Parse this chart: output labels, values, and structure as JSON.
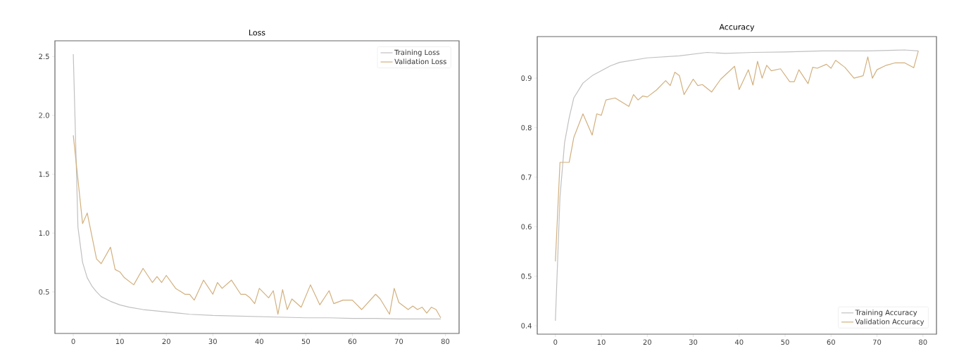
{
  "chart_data": [
    {
      "type": "line",
      "title": "Loss",
      "xlim": [
        -3.95,
        82.95
      ],
      "ylim": [
        0.147,
        2.633
      ],
      "xticks": [
        0,
        10,
        20,
        30,
        40,
        50,
        60,
        70,
        80
      ],
      "yticks": [
        0.5,
        {
          "value": 1,
          "label": "1.0"
        },
        1.5,
        {
          "value": 2,
          "label": "2.0"
        },
        2.5
      ],
      "legend": "top right",
      "series": [
        {
          "name": "Training Loss",
          "color": "#c0c0c0",
          "x": [
            0,
            1,
            2,
            3,
            4,
            5,
            6,
            8,
            10,
            12,
            15,
            20,
            25,
            30,
            35,
            40,
            45,
            50,
            55,
            60,
            65,
            70,
            75,
            79
          ],
          "values": [
            2.52,
            1.05,
            0.75,
            0.62,
            0.55,
            0.5,
            0.46,
            0.42,
            0.39,
            0.37,
            0.35,
            0.33,
            0.31,
            0.3,
            0.295,
            0.29,
            0.285,
            0.28,
            0.28,
            0.275,
            0.275,
            0.27,
            0.27,
            0.27
          ]
        },
        {
          "name": "Validation Loss",
          "color": "#d2b07e",
          "x": [
            0,
            2,
            3,
            5,
            6,
            8,
            9,
            10,
            11,
            13,
            15,
            17,
            18,
            19,
            20,
            22,
            24,
            25,
            26,
            28,
            30,
            31,
            32,
            34,
            36,
            37,
            38,
            39,
            40,
            42,
            43,
            44,
            45,
            46,
            47,
            49,
            51,
            53,
            55,
            56,
            58,
            60,
            62,
            65,
            66,
            68,
            69,
            70,
            72,
            73,
            74,
            75,
            76,
            77,
            78,
            79
          ],
          "values": [
            1.83,
            1.08,
            1.17,
            0.78,
            0.74,
            0.88,
            0.69,
            0.67,
            0.62,
            0.56,
            0.7,
            0.58,
            0.63,
            0.58,
            0.64,
            0.53,
            0.48,
            0.48,
            0.43,
            0.6,
            0.48,
            0.58,
            0.53,
            0.6,
            0.48,
            0.48,
            0.45,
            0.4,
            0.53,
            0.45,
            0.51,
            0.31,
            0.52,
            0.35,
            0.44,
            0.37,
            0.56,
            0.39,
            0.51,
            0.4,
            0.43,
            0.43,
            0.35,
            0.48,
            0.44,
            0.31,
            0.53,
            0.41,
            0.35,
            0.38,
            0.35,
            0.37,
            0.32,
            0.37,
            0.35,
            0.28
          ]
        }
      ]
    },
    {
      "type": "line",
      "title": "Accuracy",
      "xlim": [
        -3.95,
        82.95
      ],
      "ylim": [
        0.383,
        0.984
      ],
      "xticks": [
        0,
        10,
        20,
        30,
        40,
        50,
        60,
        70,
        80
      ],
      "yticks": [
        0.4,
        0.5,
        0.6,
        0.7,
        0.8,
        0.9
      ],
      "legend": "bottom right",
      "series": [
        {
          "name": "Training Accuracy",
          "color": "#c0c0c0",
          "x": [
            0,
            1,
            2,
            3,
            4,
            6,
            8,
            12,
            14,
            20,
            27,
            33,
            37,
            43,
            50,
            58,
            68,
            76,
            79
          ],
          "values": [
            0.41,
            0.66,
            0.77,
            0.82,
            0.86,
            0.89,
            0.905,
            0.925,
            0.932,
            0.941,
            0.945,
            0.952,
            0.95,
            0.952,
            0.953,
            0.955,
            0.955,
            0.957,
            0.955
          ]
        },
        {
          "name": "Validation Accuracy",
          "color": "#d2b07e",
          "x": [
            0,
            1,
            2,
            3,
            4,
            6,
            8,
            9,
            10,
            11,
            13,
            16,
            17,
            18,
            19,
            20,
            22,
            24,
            25,
            26,
            27,
            28,
            30,
            31,
            32,
            34,
            36,
            39,
            40,
            42,
            43,
            44,
            45,
            46,
            47,
            49,
            51,
            52,
            53,
            55,
            56,
            57,
            59,
            60,
            61,
            63,
            65,
            67,
            68,
            69,
            70,
            72,
            74,
            76,
            78,
            79
          ],
          "values": [
            0.53,
            0.73,
            0.73,
            0.73,
            0.78,
            0.828,
            0.785,
            0.828,
            0.825,
            0.856,
            0.86,
            0.843,
            0.867,
            0.856,
            0.864,
            0.862,
            0.876,
            0.895,
            0.885,
            0.912,
            0.905,
            0.867,
            0.898,
            0.885,
            0.887,
            0.872,
            0.898,
            0.924,
            0.877,
            0.917,
            0.886,
            0.934,
            0.9,
            0.926,
            0.915,
            0.919,
            0.893,
            0.893,
            0.917,
            0.889,
            0.922,
            0.92,
            0.928,
            0.92,
            0.936,
            0.922,
            0.9,
            0.905,
            0.943,
            0.9,
            0.917,
            0.926,
            0.931,
            0.931,
            0.921,
            0.955
          ]
        }
      ]
    }
  ]
}
